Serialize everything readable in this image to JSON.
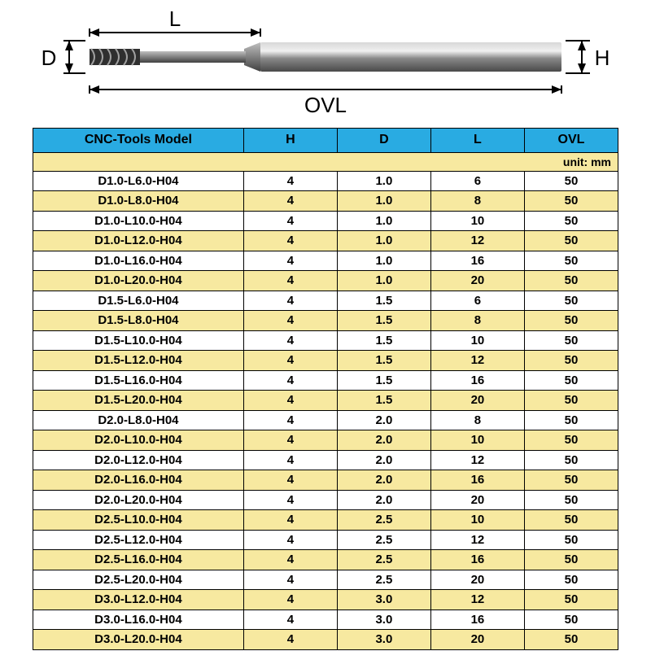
{
  "diagram": {
    "label_L": "L",
    "label_D": "D",
    "label_H": "H",
    "label_OVL": "OVL",
    "shank_color_light": "#b8b8b8",
    "shank_color_dark": "#5a5a5a",
    "flute_color": "#3a3a3a",
    "line_color": "#000000",
    "font_size": 26
  },
  "table": {
    "header_bg": "#29abe2",
    "row_alt_bg": "#f7e9a0",
    "row_bg": "#ffffff",
    "border_color": "#000000",
    "columns": [
      "CNC-Tools Model",
      "H",
      "D",
      "L",
      "OVL"
    ],
    "unit_label": "unit: mm",
    "rows": [
      [
        "D1.0-L6.0-H04",
        "4",
        "1.0",
        "6",
        "50"
      ],
      [
        "D1.0-L8.0-H04",
        "4",
        "1.0",
        "8",
        "50"
      ],
      [
        "D1.0-L10.0-H04",
        "4",
        "1.0",
        "10",
        "50"
      ],
      [
        "D1.0-L12.0-H04",
        "4",
        "1.0",
        "12",
        "50"
      ],
      [
        "D1.0-L16.0-H04",
        "4",
        "1.0",
        "16",
        "50"
      ],
      [
        "D1.0-L20.0-H04",
        "4",
        "1.0",
        "20",
        "50"
      ],
      [
        "D1.5-L6.0-H04",
        "4",
        "1.5",
        "6",
        "50"
      ],
      [
        "D1.5-L8.0-H04",
        "4",
        "1.5",
        "8",
        "50"
      ],
      [
        "D1.5-L10.0-H04",
        "4",
        "1.5",
        "10",
        "50"
      ],
      [
        "D1.5-L12.0-H04",
        "4",
        "1.5",
        "12",
        "50"
      ],
      [
        "D1.5-L16.0-H04",
        "4",
        "1.5",
        "16",
        "50"
      ],
      [
        "D1.5-L20.0-H04",
        "4",
        "1.5",
        "20",
        "50"
      ],
      [
        "D2.0-L8.0-H04",
        "4",
        "2.0",
        "8",
        "50"
      ],
      [
        "D2.0-L10.0-H04",
        "4",
        "2.0",
        "10",
        "50"
      ],
      [
        "D2.0-L12.0-H04",
        "4",
        "2.0",
        "12",
        "50"
      ],
      [
        "D2.0-L16.0-H04",
        "4",
        "2.0",
        "16",
        "50"
      ],
      [
        "D2.0-L20.0-H04",
        "4",
        "2.0",
        "20",
        "50"
      ],
      [
        "D2.5-L10.0-H04",
        "4",
        "2.5",
        "10",
        "50"
      ],
      [
        "D2.5-L12.0-H04",
        "4",
        "2.5",
        "12",
        "50"
      ],
      [
        "D2.5-L16.0-H04",
        "4",
        "2.5",
        "16",
        "50"
      ],
      [
        "D2.5-L20.0-H04",
        "4",
        "2.5",
        "20",
        "50"
      ],
      [
        "D3.0-L12.0-H04",
        "4",
        "3.0",
        "12",
        "50"
      ],
      [
        "D3.0-L16.0-H04",
        "4",
        "3.0",
        "16",
        "50"
      ],
      [
        "D3.0-L20.0-H04",
        "4",
        "3.0",
        "20",
        "50"
      ]
    ]
  }
}
